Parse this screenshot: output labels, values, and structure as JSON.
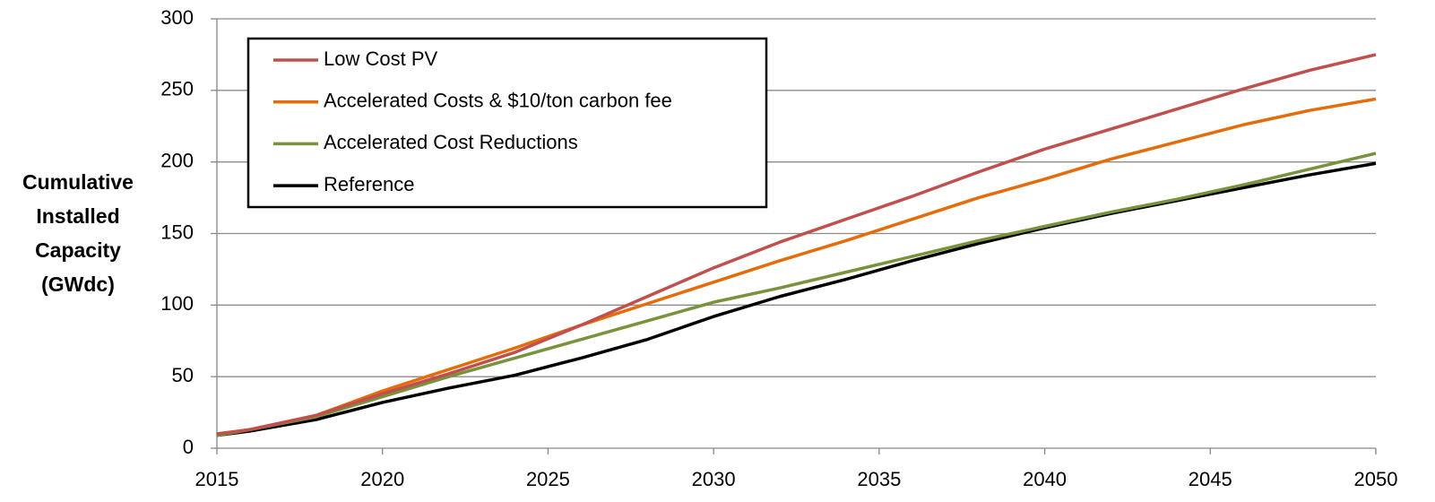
{
  "chart_data": {
    "type": "line",
    "ylabel": [
      "Cumulative",
      "Installed",
      "Capacity",
      "(GWdc)"
    ],
    "x": [
      2015,
      2016,
      2018,
      2020,
      2022,
      2024,
      2026,
      2028,
      2030,
      2032,
      2034,
      2036,
      2038,
      2040,
      2042,
      2044,
      2046,
      2048,
      2050
    ],
    "series": [
      {
        "name": "Low Cost PV",
        "color": "#c0504d",
        "values": [
          10,
          13,
          23,
          38,
          52,
          67,
          86,
          106,
          126,
          144,
          160,
          176,
          193,
          209,
          223,
          237,
          251,
          264,
          275
        ]
      },
      {
        "name": "Accelerated Costs & $10/ton carbon fee",
        "color": "#e46c0a",
        "values": [
          10,
          13,
          23,
          40,
          55,
          70,
          86,
          101,
          116,
          131,
          145,
          160,
          175,
          188,
          202,
          214,
          226,
          236,
          244
        ]
      },
      {
        "name": "Accelerated Cost Reductions",
        "color": "#77933c",
        "values": [
          9,
          13,
          22,
          36,
          50,
          63,
          76,
          89,
          102,
          112,
          123,
          134,
          145,
          155,
          165,
          174,
          184,
          195,
          206
        ]
      },
      {
        "name": "Reference",
        "color": "#000000",
        "values": [
          9,
          12,
          20,
          32,
          42,
          51,
          63,
          76,
          92,
          106,
          118,
          131,
          143,
          154,
          164,
          173,
          182,
          191,
          199
        ]
      }
    ],
    "xlim": [
      2015,
      2050
    ],
    "xticks": [
      2015,
      2020,
      2025,
      2030,
      2035,
      2040,
      2045,
      2050
    ],
    "ylim": [
      0,
      300
    ],
    "yticks": [
      0,
      50,
      100,
      150,
      200,
      250,
      300
    ],
    "grid": true,
    "legend": "upper left"
  }
}
